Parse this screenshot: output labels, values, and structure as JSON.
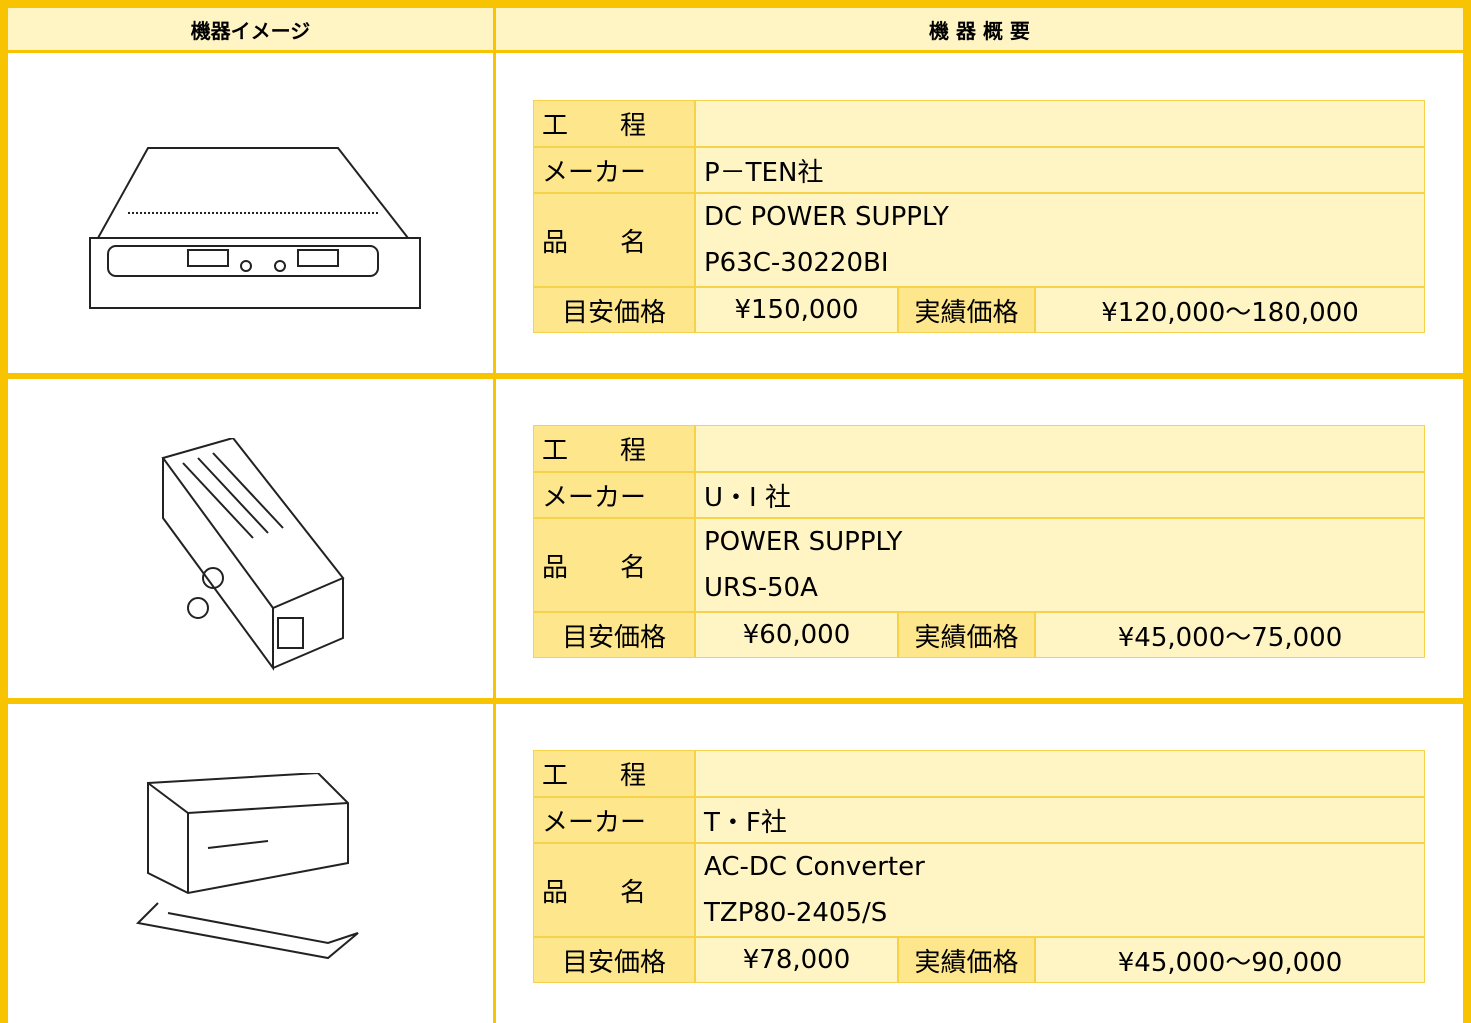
{
  "header": {
    "image": "機器イメージ",
    "overview": "機 器 概 要"
  },
  "labels": {
    "process": "工　　程",
    "maker": "メーカー",
    "name": "品　　名",
    "price": "目安価格",
    "actual": "実績価格"
  },
  "items": [
    {
      "maker": "P－TEN社",
      "name": [
        "DC POWER SUPPLY",
        "P63C-30220BI"
      ],
      "price": "¥150,000",
      "actual": "¥120,000～180,000"
    },
    {
      "maker": "U・I 社",
      "name": [
        "POWER SUPPLY",
        "URS-50A"
      ],
      "price": "¥60,000",
      "actual": "¥45,000～75,000"
    },
    {
      "maker": "T・F社",
      "name": [
        "AC-DC Converter",
        "TZP80-2405/S"
      ],
      "price": "¥78,000",
      "actual": "¥45,000～90,000"
    }
  ]
}
